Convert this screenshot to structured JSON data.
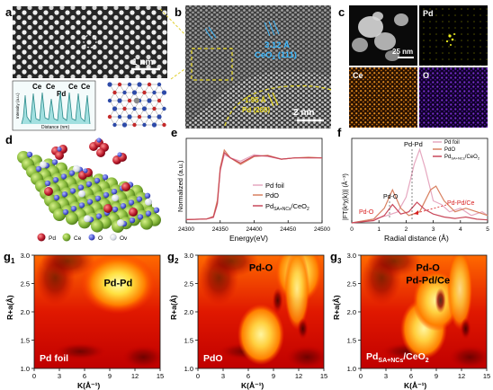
{
  "panels": {
    "a": {
      "letter": "a",
      "scale_label": "1 nm",
      "atom_labels": [
        "Ce",
        "Ce",
        "Pd",
        "Ce",
        "Ce"
      ],
      "profile_ylabel": "Intensity (a.u.)",
      "profile_xlabel": "Distance (nm)"
    },
    "b": {
      "letter": "b",
      "d_spacing_1": "3.12 Å",
      "plane_1": "CeO",
      "plane_1_sub": "2",
      "plane_1_hkl": " (111)",
      "d_spacing_2": "1.95 Å",
      "plane_2": "Pd (200)",
      "scale_label": "2 nm"
    },
    "c": {
      "letter": "c",
      "scale_label": "25 nm",
      "maps": [
        "Pd",
        "Ce",
        "O"
      ]
    },
    "d": {
      "letter": "d",
      "legend": [
        "Pd",
        "Ce",
        "O",
        "Ov"
      ]
    },
    "e": {
      "letter": "e",
      "ylabel": "Normalized (a.u.)",
      "xlabel": "Energy(eV)",
      "xticks": [
        "24300",
        "24350",
        "24400",
        "24450",
        "24500"
      ],
      "legend": [
        "Pd foil",
        "PdO",
        "Pd",
        "SA+NCs",
        "/CeO",
        "2"
      ]
    },
    "f": {
      "letter": "f",
      "ylabel": "|FT(k²χ(k))| (Å⁻³)",
      "xlabel": "Radial distance (Å)",
      "xticks": [
        "0",
        "1",
        "2",
        "3",
        "4",
        "5"
      ],
      "legend": [
        "Pd foil",
        "PdO",
        "Pd",
        "SA+NCs",
        "/CeO",
        "2"
      ],
      "annotations": [
        "Pd-Pd",
        "Pd-O",
        "Pd-O",
        "Pd-Pd/Ce"
      ]
    },
    "g1": {
      "letter": "g",
      "sub": "1",
      "feature_label": "Pd-Pd",
      "sample": "Pd foil"
    },
    "g2": {
      "letter": "g",
      "sub": "2",
      "feature_label": "Pd-O",
      "sample": "PdO"
    },
    "g3": {
      "letter": "g",
      "sub": "3",
      "feature_label": "Pd-O",
      "feature_label_2": "Pd-Pd/Ce",
      "sample_main": "Pd",
      "sample_sub": "SA+NCs",
      "sample_tail": "/CeO",
      "sample_tail_sub": "2"
    }
  },
  "wavelet_axes": {
    "ylabel": "R+a(Å)",
    "xlabel": "K(Å⁻¹)",
    "yticks": [
      "1.0",
      "1.5",
      "2.0",
      "2.5",
      "3.0"
    ],
    "xticks": [
      "0",
      "3",
      "6",
      "9",
      "12",
      "15"
    ]
  },
  "chart_data": [
    {
      "type": "line",
      "panel": "e",
      "xlabel": "Energy(eV)",
      "ylabel": "Normalized (a.u.)",
      "xlim": [
        24300,
        24500
      ],
      "series": [
        {
          "name": "Pd foil",
          "color": "#e6a8c0",
          "x": [
            24300,
            24330,
            24340,
            24345,
            24350,
            24356,
            24365,
            24380,
            24400,
            24420,
            24440,
            24460,
            24480,
            24500
          ],
          "y": [
            0.05,
            0.06,
            0.08,
            0.25,
            0.8,
            1.05,
            1.0,
            0.95,
            1.05,
            1.02,
            0.98,
            1.0,
            1.0,
            1.0
          ]
        },
        {
          "name": "PdO",
          "color": "#d88060",
          "x": [
            24300,
            24330,
            24340,
            24346,
            24350,
            24356,
            24365,
            24380,
            24400,
            24420,
            24440,
            24460,
            24480,
            24500
          ],
          "y": [
            0.05,
            0.06,
            0.1,
            0.35,
            0.85,
            1.12,
            1.0,
            0.9,
            1.02,
            1.04,
            0.98,
            1.0,
            1.01,
            1.0
          ]
        },
        {
          "name": "PdSA+NCs/CeO2",
          "color": "#c9485a",
          "x": [
            24300,
            24330,
            24340,
            24346,
            24350,
            24356,
            24365,
            24380,
            24400,
            24420,
            24440,
            24460,
            24480,
            24500
          ],
          "y": [
            0.05,
            0.06,
            0.09,
            0.3,
            0.82,
            1.08,
            1.0,
            0.92,
            1.03,
            1.03,
            0.98,
            1.0,
            1.0,
            1.0
          ]
        }
      ]
    },
    {
      "type": "line",
      "panel": "f",
      "xlabel": "Radial distance (Å)",
      "ylabel": "|FT(k²χ(k))| (Å⁻³)",
      "xlim": [
        0,
        5
      ],
      "series": [
        {
          "name": "Pd foil",
          "color": "#e6a8c0",
          "x": [
            0,
            0.8,
            1.3,
            1.7,
            2.0,
            2.3,
            2.5,
            2.7,
            3.0,
            3.3,
            3.6,
            4.0,
            4.4,
            4.8,
            5.0
          ],
          "y": [
            0.0,
            0.05,
            0.1,
            0.15,
            0.35,
            0.8,
            1.0,
            0.75,
            0.3,
            0.25,
            0.15,
            0.2,
            0.1,
            0.15,
            0.1
          ]
        },
        {
          "name": "PdO",
          "color": "#d88060",
          "x": [
            0,
            0.8,
            1.2,
            1.5,
            1.8,
            2.1,
            2.5,
            2.9,
            3.1,
            3.4,
            3.8,
            4.2,
            4.6,
            5.0
          ],
          "y": [
            0.0,
            0.05,
            0.2,
            0.45,
            0.2,
            0.1,
            0.15,
            0.45,
            0.5,
            0.3,
            0.15,
            0.2,
            0.15,
            0.1
          ]
        },
        {
          "name": "PdSA+NCs/CeO2",
          "color": "#c9485a",
          "x": [
            0,
            0.8,
            1.2,
            1.5,
            1.8,
            2.1,
            2.4,
            2.7,
            3.0,
            3.4,
            3.8,
            4.2,
            4.6,
            5.0
          ],
          "y": [
            0.0,
            0.03,
            0.1,
            0.25,
            0.12,
            0.15,
            0.28,
            0.18,
            0.12,
            0.08,
            0.06,
            0.08,
            0.05,
            0.04
          ]
        }
      ]
    },
    {
      "type": "heatmap",
      "panel": "g1",
      "xlabel": "K(Å⁻¹)",
      "ylabel": "R+a(Å)",
      "xlim": [
        0,
        15
      ],
      "ylim": [
        1.0,
        3.0
      ],
      "maxima": [
        {
          "k": 10,
          "r": 2.5,
          "label": "Pd-Pd"
        }
      ]
    },
    {
      "type": "heatmap",
      "panel": "g2",
      "xlabel": "K(Å⁻¹)",
      "ylabel": "R+a(Å)",
      "xlim": [
        0,
        15
      ],
      "ylim": [
        1.0,
        3.0
      ],
      "maxima": [
        {
          "k": 7.5,
          "r": 1.6,
          "label": "Pd-O"
        },
        {
          "k": 12,
          "r": 2.7
        }
      ]
    },
    {
      "type": "heatmap",
      "panel": "g3",
      "xlabel": "K(Å⁻¹)",
      "ylabel": "R+a(Å)",
      "xlim": [
        0,
        15
      ],
      "ylim": [
        1.0,
        3.0
      ],
      "maxima": [
        {
          "k": 7.5,
          "r": 1.7,
          "label": "Pd-O"
        },
        {
          "k": 9,
          "r": 2.2,
          "label": "Pd-Pd/Ce"
        }
      ]
    }
  ]
}
